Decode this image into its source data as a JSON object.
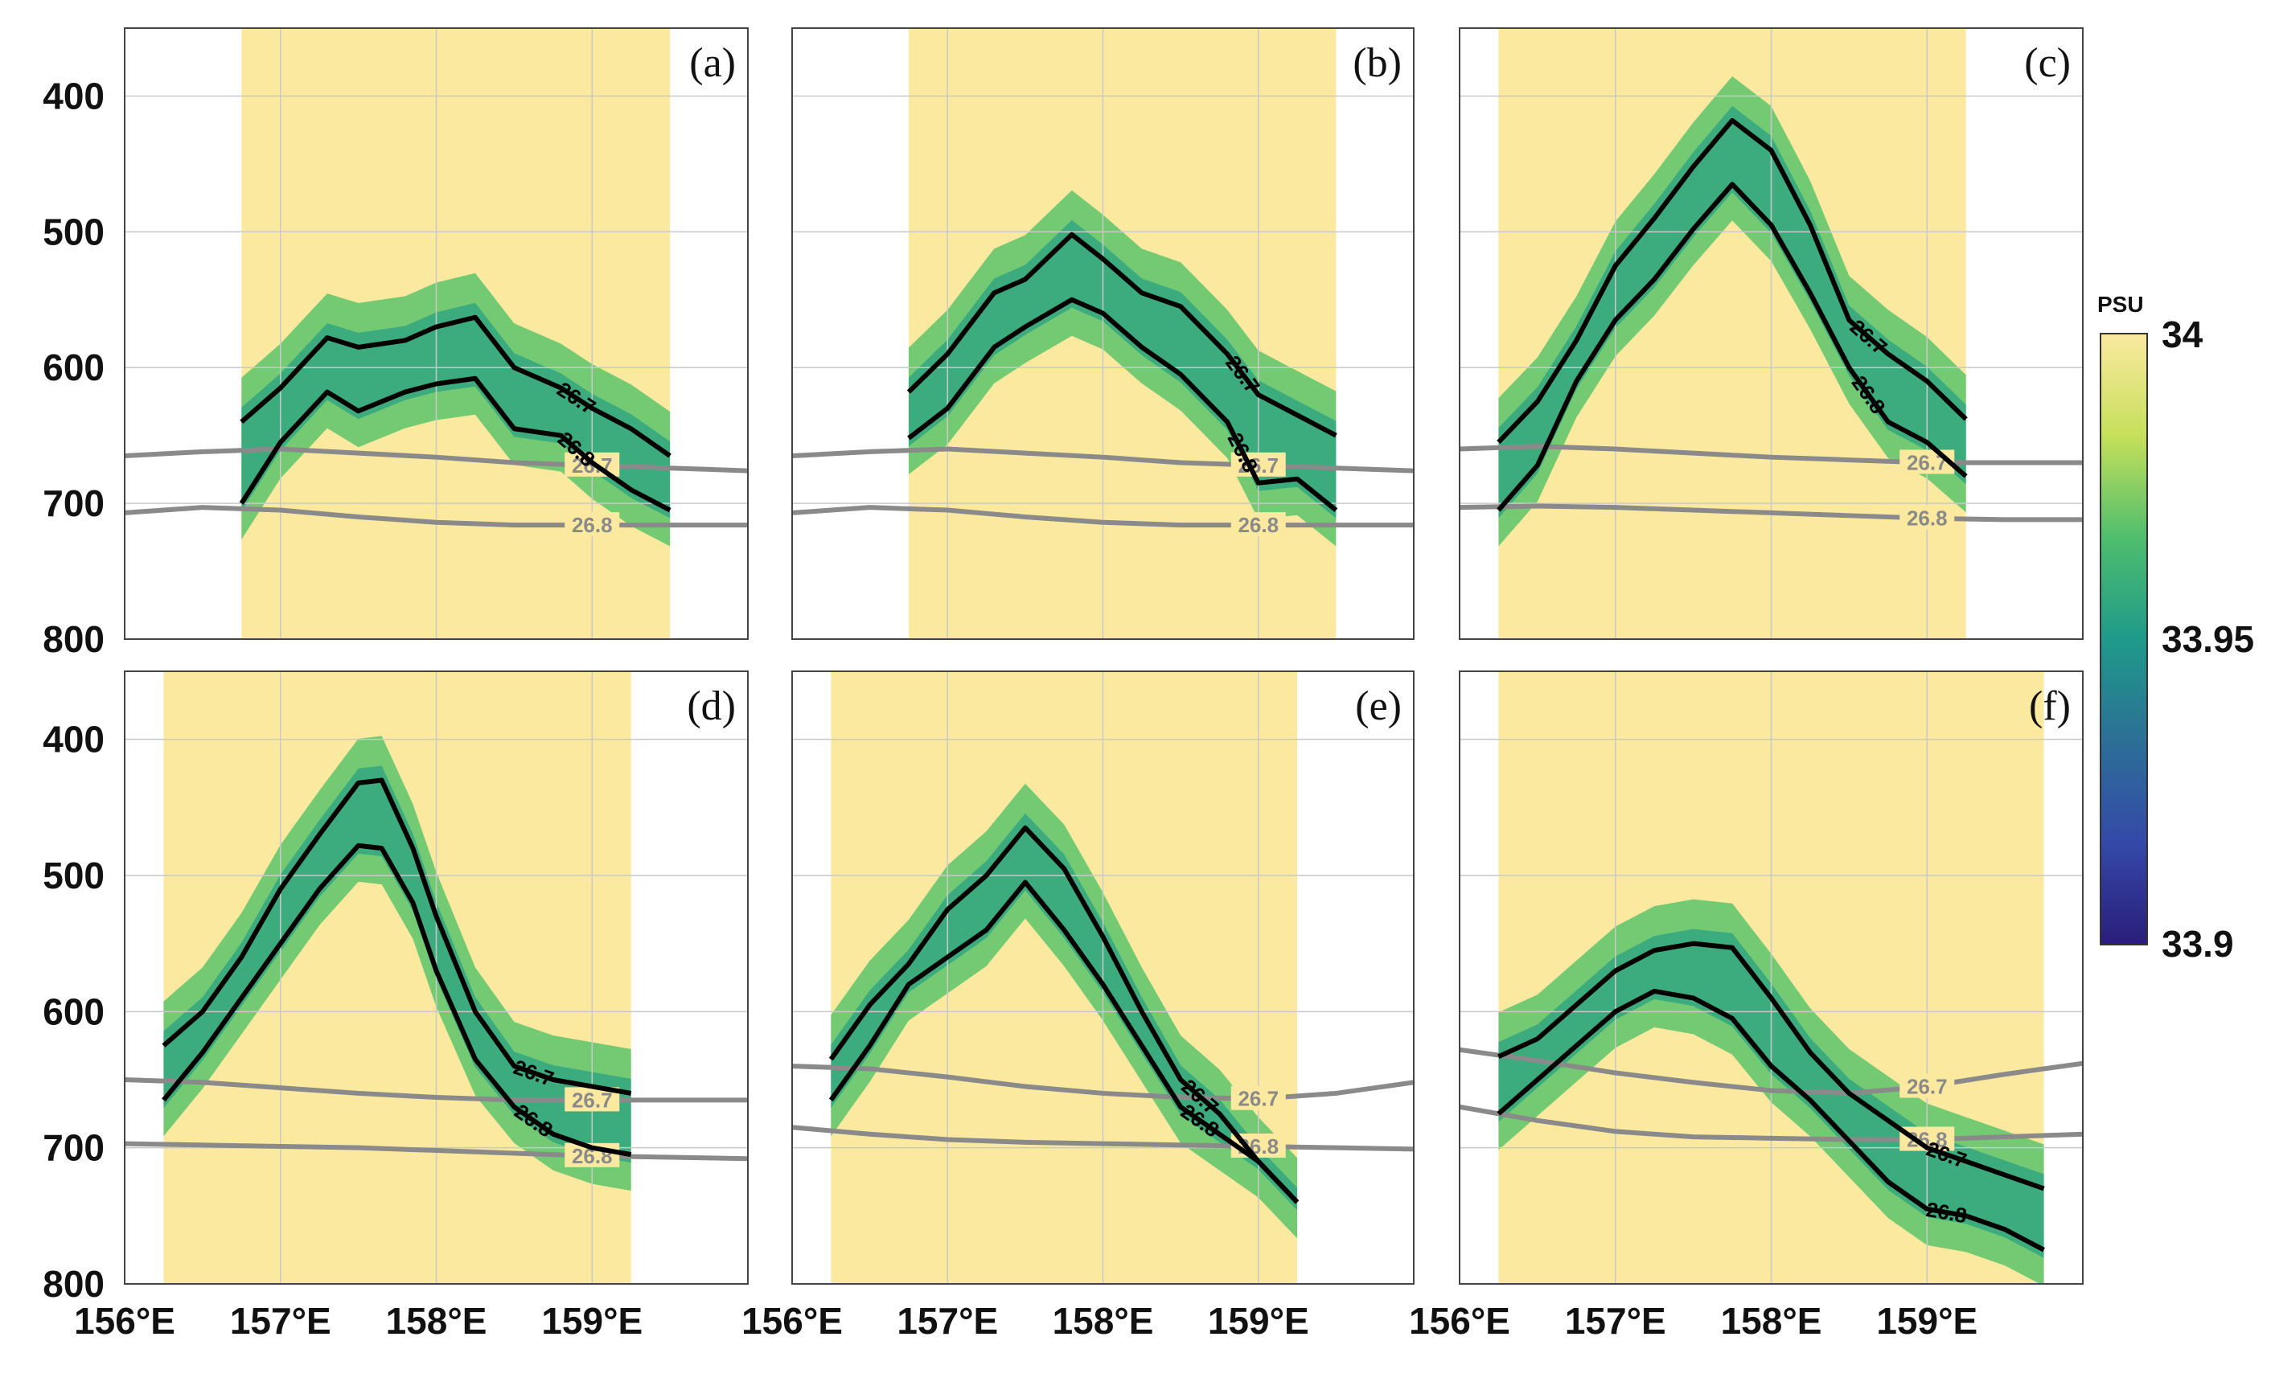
{
  "chart_data": {
    "type": "heatmap",
    "title": "",
    "xlabel": "",
    "ylabel": "",
    "ylim": [
      350,
      800
    ],
    "y_ticks": [
      "400",
      "500",
      "600",
      "700",
      "800"
    ],
    "x_ticks": [
      "156°E",
      "157°E",
      "158°E",
      "159°E"
    ],
    "x_tick_values": [
      156,
      157,
      158,
      159
    ],
    "colorbar": {
      "unit": "PSU",
      "min": 33.9,
      "max": 34.0,
      "ticks": [
        "34",
        "33.95",
        "33.9"
      ],
      "colors": [
        "#fbe9a0",
        "#c6e05a",
        "#4fbe6d",
        "#1f9a8a",
        "#2c6f96",
        "#3449a8",
        "#2a1d7a"
      ]
    },
    "background_color": "#fbe9a0",
    "panels": [
      {
        "label": "(a)",
        "xlim": [
          156.0,
          160.0
        ],
        "data_extent": [
          156.75,
          159.5
        ],
        "isopycnals": [
          {
            "level": "26.7",
            "label": "26.7",
            "x": [
              156.75,
              157.0,
              157.3,
              157.5,
              157.8,
              158.0,
              158.25,
              158.5,
              158.8,
              159.0,
              159.25,
              159.5
            ],
            "y": [
              640,
              615,
              578,
              585,
              580,
              570,
              563,
              600,
              615,
              630,
              645,
              665
            ]
          },
          {
            "level": "26.8",
            "label": "26.8",
            "x": [
              156.75,
              157.0,
              157.3,
              157.5,
              157.8,
              158.0,
              158.25,
              158.5,
              158.8,
              159.0,
              159.25,
              159.5
            ],
            "y": [
              700,
              655,
              618,
              632,
              618,
              612,
              608,
              645,
              650,
              670,
              690,
              705
            ]
          }
        ],
        "mean_isopycnals": [
          {
            "level": "26.7",
            "label": "26.7",
            "x": [
              156.0,
              156.5,
              157.0,
              157.5,
              158.0,
              158.5,
              159.0,
              159.5,
              160.0
            ],
            "y": [
              665,
              662,
              660,
              663,
              666,
              670,
              672,
              674,
              676
            ]
          },
          {
            "level": "26.8",
            "label": "26.8",
            "x": [
              156.0,
              156.5,
              157.0,
              157.5,
              158.0,
              158.5,
              159.0,
              159.5,
              160.0
            ],
            "y": [
              707,
              703,
              705,
              710,
              714,
              716,
              716,
              716,
              716
            ]
          }
        ]
      },
      {
        "label": "(b)",
        "xlim": [
          156.0,
          160.0
        ],
        "data_extent": [
          156.75,
          159.5
        ],
        "isopycnals": [
          {
            "level": "26.7",
            "label": "26.7",
            "x": [
              156.75,
              157.0,
              157.3,
              157.5,
              157.8,
              158.0,
              158.25,
              158.5,
              158.8,
              159.0,
              159.25,
              159.5
            ],
            "y": [
              618,
              590,
              545,
              535,
              502,
              520,
              545,
              555,
              590,
              620,
              635,
              650
            ]
          },
          {
            "level": "26.8",
            "label": "26.8",
            "x": [
              156.75,
              157.0,
              157.3,
              157.5,
              157.8,
              158.0,
              158.25,
              158.5,
              158.8,
              159.0,
              159.25,
              159.5
            ],
            "y": [
              652,
              630,
              585,
              570,
              550,
              560,
              585,
              605,
              640,
              685,
              682,
              705
            ]
          }
        ],
        "mean_isopycnals": [
          {
            "level": "26.7",
            "label": "26.7",
            "x": [
              156.0,
              156.5,
              157.0,
              157.5,
              158.0,
              158.5,
              159.0,
              159.5,
              160.0
            ],
            "y": [
              665,
              662,
              660,
              663,
              666,
              670,
              672,
              674,
              676
            ]
          },
          {
            "level": "26.8",
            "label": "26.8",
            "x": [
              156.0,
              156.5,
              157.0,
              157.5,
              158.0,
              158.5,
              159.0,
              159.5,
              160.0
            ],
            "y": [
              707,
              703,
              705,
              710,
              714,
              716,
              716,
              716,
              716
            ]
          }
        ]
      },
      {
        "label": "(c)",
        "xlim": [
          156.0,
          160.0
        ],
        "data_extent": [
          156.25,
          159.25
        ],
        "isopycnals": [
          {
            "level": "26.7",
            "label": "26.7",
            "x": [
              156.25,
              156.5,
              156.75,
              157.0,
              157.25,
              157.5,
              157.75,
              158.0,
              158.25,
              158.5,
              158.75,
              159.0,
              159.25
            ],
            "y": [
              655,
              625,
              580,
              525,
              490,
              452,
              418,
              440,
              495,
              565,
              590,
              610,
              638
            ]
          },
          {
            "level": "26.8",
            "label": "26.8",
            "x": [
              156.25,
              156.5,
              156.75,
              157.0,
              157.25,
              157.5,
              157.75,
              158.0,
              158.25,
              158.5,
              158.75,
              159.0,
              159.25
            ],
            "y": [
              705,
              672,
              610,
              565,
              535,
              498,
              465,
              495,
              545,
              600,
              640,
              655,
              680
            ]
          }
        ],
        "mean_isopycnals": [
          {
            "level": "26.7",
            "label": "26.7",
            "x": [
              156.0,
              156.5,
              157.0,
              157.5,
              158.0,
              158.5,
              159.0,
              159.5,
              160.0
            ],
            "y": [
              660,
              658,
              660,
              663,
              666,
              668,
              670,
              670,
              670
            ]
          },
          {
            "level": "26.8",
            "label": "26.8",
            "x": [
              156.0,
              156.5,
              157.0,
              157.5,
              158.0,
              158.5,
              159.0,
              159.5,
              160.0
            ],
            "y": [
              703,
              702,
              703,
              705,
              707,
              709,
              711,
              712,
              712
            ]
          }
        ]
      },
      {
        "label": "(d)",
        "xlim": [
          156.0,
          160.0
        ],
        "data_extent": [
          156.25,
          159.25
        ],
        "isopycnals": [
          {
            "level": "26.7",
            "label": "26.7",
            "x": [
              156.25,
              156.5,
              156.75,
              157.0,
              157.25,
              157.5,
              157.65,
              157.85,
              158.0,
              158.25,
              158.5,
              158.75,
              159.0,
              159.25
            ],
            "y": [
              625,
              600,
              560,
              510,
              470,
              432,
              430,
              480,
              530,
              600,
              640,
              650,
              655,
              660
            ]
          },
          {
            "level": "26.8",
            "label": "26.8",
            "x": [
              156.25,
              156.5,
              156.75,
              157.0,
              157.25,
              157.5,
              157.65,
              157.85,
              158.0,
              158.25,
              158.5,
              158.75,
              159.0,
              159.25
            ],
            "y": [
              665,
              630,
              590,
              550,
              510,
              478,
              480,
              520,
              570,
              635,
              670,
              690,
              700,
              705
            ]
          }
        ],
        "mean_isopycnals": [
          {
            "level": "26.7",
            "label": "26.7",
            "x": [
              156.0,
              156.5,
              157.0,
              157.5,
              158.0,
              158.5,
              159.0,
              159.5,
              160.0
            ],
            "y": [
              650,
              652,
              656,
              660,
              663,
              665,
              665,
              665,
              665
            ]
          },
          {
            "level": "26.8",
            "label": "26.8",
            "x": [
              156.0,
              156.5,
              157.0,
              157.5,
              158.0,
              158.5,
              159.0,
              159.5,
              160.0
            ],
            "y": [
              697,
              698,
              699,
              700,
              702,
              704,
              706,
              707,
              708
            ]
          }
        ]
      },
      {
        "label": "(e)",
        "xlim": [
          156.0,
          160.0
        ],
        "data_extent": [
          156.25,
          159.25
        ],
        "isopycnals": [
          {
            "level": "26.7",
            "label": "26.7",
            "x": [
              156.25,
              156.5,
              156.75,
              157.0,
              157.25,
              157.5,
              157.75,
              158.0,
              158.25,
              158.5,
              158.75,
              159.0,
              159.25
            ],
            "y": [
              635,
              595,
              565,
              525,
              500,
              465,
              495,
              545,
              600,
              650,
              675,
              710,
              740
            ]
          },
          {
            "level": "26.8",
            "label": "26.8",
            "x": [
              156.25,
              156.5,
              156.75,
              157.0,
              157.25,
              157.5,
              157.75,
              158.0,
              158.25,
              158.5,
              158.75,
              159.0,
              159.25
            ],
            "y": [
              665,
              625,
              580,
              560,
              540,
              505,
              540,
              580,
              625,
              670,
              690,
              710,
              740
            ]
          }
        ],
        "mean_isopycnals": [
          {
            "level": "26.7",
            "label": "26.7",
            "x": [
              156.0,
              156.5,
              157.0,
              157.5,
              158.0,
              158.5,
              159.0,
              159.5,
              160.0
            ],
            "y": [
              640,
              642,
              648,
              655,
              660,
              663,
              664,
              660,
              652
            ]
          },
          {
            "level": "26.8",
            "label": "26.8",
            "x": [
              156.0,
              156.5,
              157.0,
              157.5,
              158.0,
              158.5,
              159.0,
              159.5,
              160.0
            ],
            "y": [
              685,
              690,
              694,
              696,
              697,
              698,
              699,
              700,
              701
            ]
          }
        ]
      },
      {
        "label": "(f)",
        "xlim": [
          156.0,
          160.0
        ],
        "data_extent": [
          156.25,
          159.75
        ],
        "isopycnals": [
          {
            "level": "26.7",
            "label": "26.7",
            "x": [
              156.25,
              156.5,
              156.75,
              157.0,
              157.25,
              157.5,
              157.75,
              158.0,
              158.25,
              158.5,
              158.75,
              159.0,
              159.25,
              159.5,
              159.75
            ],
            "y": [
              633,
              620,
              595,
              570,
              555,
              550,
              553,
              590,
              630,
              660,
              680,
              700,
              710,
              720,
              730
            ]
          },
          {
            "level": "26.8",
            "label": "26.8",
            "x": [
              156.25,
              156.5,
              156.75,
              157.0,
              157.25,
              157.5,
              157.75,
              158.0,
              158.25,
              158.5,
              158.75,
              159.0,
              159.25,
              159.5,
              159.75
            ],
            "y": [
              675,
              650,
              625,
              600,
              585,
              590,
              605,
              640,
              665,
              695,
              725,
              745,
              750,
              760,
              775
            ]
          }
        ],
        "mean_isopycnals": [
          {
            "level": "26.7",
            "label": "26.7",
            "x": [
              156.0,
              156.5,
              157.0,
              157.5,
              158.0,
              158.5,
              159.0,
              159.5,
              160.0
            ],
            "y": [
              628,
              636,
              645,
              652,
              658,
              660,
              655,
              646,
              638
            ]
          },
          {
            "level": "26.8",
            "label": "26.8",
            "x": [
              156.0,
              156.5,
              157.0,
              157.5,
              158.0,
              158.5,
              159.0,
              159.5,
              160.0
            ],
            "y": [
              670,
              680,
              688,
              692,
              693,
              694,
              694,
              692,
              690
            ]
          }
        ]
      }
    ]
  }
}
